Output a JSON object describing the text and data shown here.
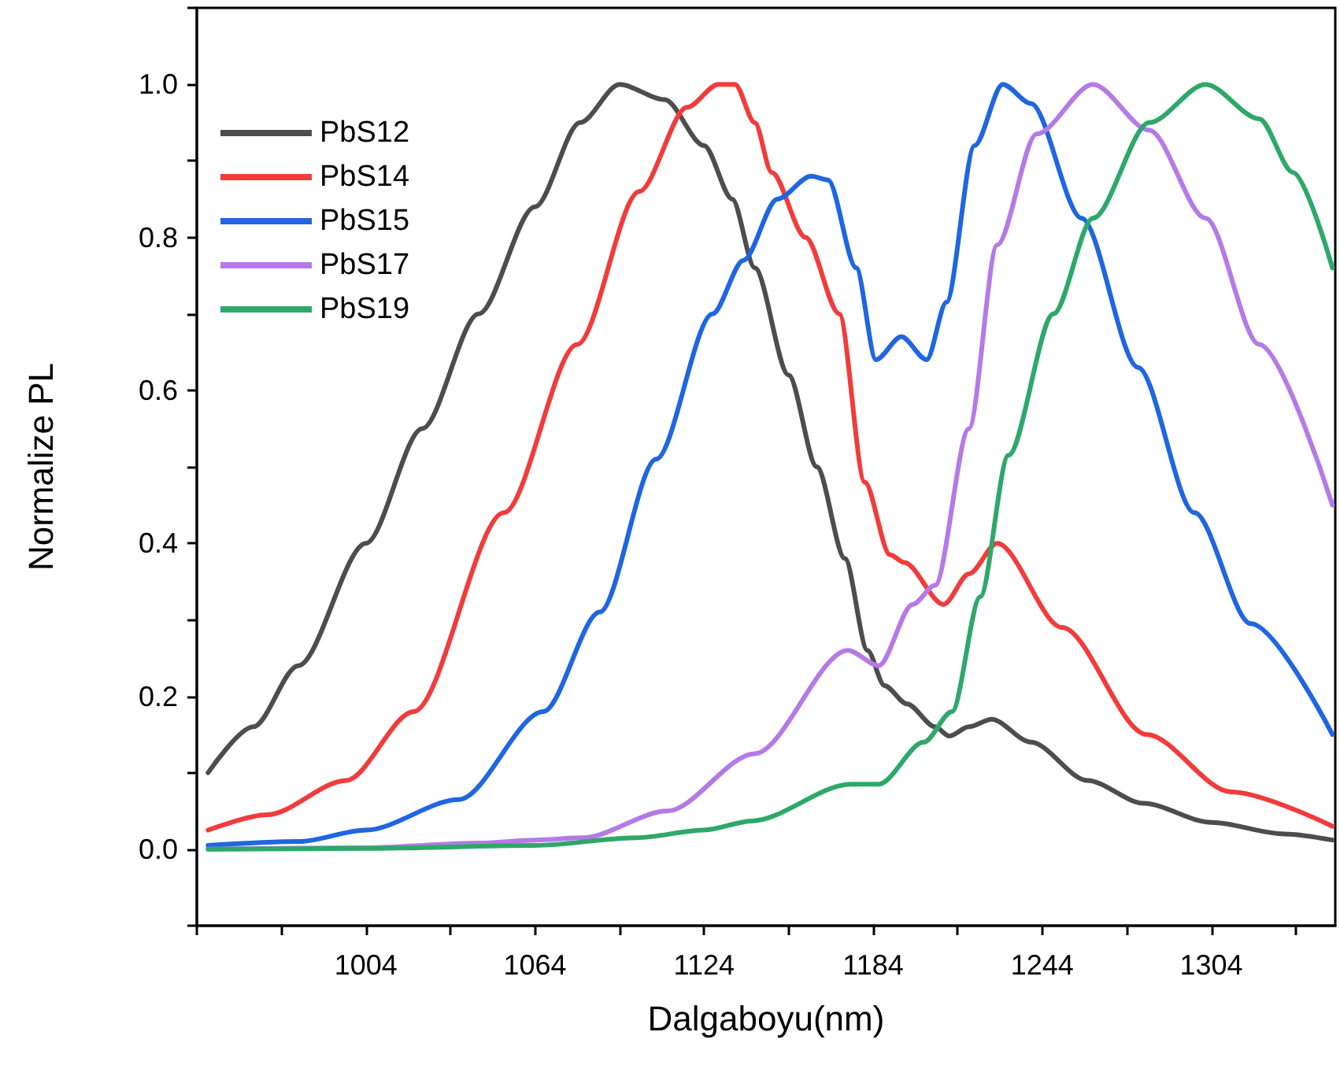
{
  "chart_data": {
    "type": "line",
    "xlabel": "Dalgaboyu(nm)",
    "ylabel": "Normalize PL",
    "xlim": [
      944,
      1348
    ],
    "ylim": [
      -0.1,
      1.1
    ],
    "xticks": [
      {
        "value": 944,
        "label": null
      },
      {
        "value": 974,
        "label": null
      },
      1004,
      {
        "value": 1034,
        "label": null
      },
      1064,
      {
        "value": 1094,
        "label": null
      },
      1124,
      {
        "value": 1154,
        "label": null
      },
      1184,
      {
        "value": 1214,
        "label": null
      },
      1244,
      {
        "value": 1274,
        "label": null
      },
      1304,
      {
        "value": 1334,
        "label": null
      }
    ],
    "yticks": [
      {
        "value": -0.1,
        "label": null
      },
      {
        "value": 0,
        "label": "0.0"
      },
      {
        "value": 0.1,
        "label": null
      },
      {
        "value": 0.2,
        "label": "0.2"
      },
      {
        "value": 0.3,
        "label": null
      },
      {
        "value": 0.4,
        "label": "0.4"
      },
      {
        "value": 0.5,
        "label": null
      },
      {
        "value": 0.6,
        "label": "0.6"
      },
      {
        "value": 0.7,
        "label": null
      },
      {
        "value": 0.8,
        "label": "0.8"
      },
      {
        "value": 0.9,
        "label": null
      },
      {
        "value": 1.0,
        "label": "1.0"
      },
      {
        "value": 1.1,
        "label": null
      }
    ],
    "grid": false,
    "legend": "top left",
    "marker": "none",
    "line_style": "solid",
    "series": [
      {
        "name": "PbS12",
        "color": "#4d4d4d",
        "x": [
          948,
          964,
          980,
          1004,
          1024,
          1044,
          1064,
          1080,
          1094,
          1110,
          1124,
          1134,
          1142,
          1154,
          1164,
          1174,
          1182,
          1188,
          1196,
          1206,
          1211,
          1218,
          1226,
          1240,
          1260,
          1280,
          1304,
          1330,
          1347
        ],
        "values": [
          0.1,
          0.16,
          0.24,
          0.4,
          0.55,
          0.7,
          0.84,
          0.95,
          1.0,
          0.98,
          0.92,
          0.85,
          0.76,
          0.62,
          0.5,
          0.38,
          0.26,
          0.214,
          0.19,
          0.16,
          0.148,
          0.16,
          0.17,
          0.14,
          0.09,
          0.06,
          0.035,
          0.02,
          0.012
        ]
      },
      {
        "name": "PbS14",
        "color": "#f03c3c",
        "x": [
          948,
          969,
          997,
          1021,
          1053,
          1079,
          1101,
          1118,
          1129,
          1135,
          1142,
          1148,
          1160,
          1172,
          1181,
          1190,
          1195,
          1209,
          1218,
          1228,
          1251,
          1281,
          1311,
          1347
        ],
        "values": [
          0.025,
          0.045,
          0.09,
          0.18,
          0.44,
          0.66,
          0.86,
          0.97,
          1.0,
          1.0,
          0.95,
          0.885,
          0.8,
          0.7,
          0.48,
          0.385,
          0.375,
          0.32,
          0.36,
          0.4,
          0.29,
          0.15,
          0.075,
          0.03
        ]
      },
      {
        "name": "PbS15",
        "color": "#1f66e0",
        "x": [
          948,
          980,
          1004,
          1037,
          1067,
          1087,
          1107,
          1127,
          1138,
          1150,
          1162,
          1168,
          1178,
          1185,
          1194,
          1203,
          1210,
          1220,
          1230,
          1240,
          1258,
          1278,
          1298,
          1318,
          1347
        ],
        "values": [
          0.005,
          0.01,
          0.025,
          0.065,
          0.18,
          0.31,
          0.51,
          0.7,
          0.77,
          0.85,
          0.88,
          0.875,
          0.76,
          0.64,
          0.67,
          0.64,
          0.715,
          0.92,
          1.0,
          0.975,
          0.825,
          0.63,
          0.44,
          0.295,
          0.15
        ]
      },
      {
        "name": "PbS17",
        "color": "#b57ae6",
        "x": [
          948,
          1004,
          1044,
          1064,
          1081,
          1111,
          1142,
          1175,
          1186,
          1198,
          1206,
          1218,
          1228,
          1242,
          1262,
          1282,
          1302,
          1321,
          1347
        ],
        "values": [
          0,
          0.002,
          0.008,
          0.012,
          0.015,
          0.05,
          0.125,
          0.26,
          0.24,
          0.32,
          0.345,
          0.55,
          0.79,
          0.935,
          1.0,
          0.94,
          0.825,
          0.66,
          0.45
        ]
      },
      {
        "name": "PbS19",
        "color": "#2ea86a",
        "x": [
          948,
          1004,
          1064,
          1100,
          1124,
          1141,
          1176,
          1186,
          1202,
          1212,
          1222,
          1232,
          1248,
          1262,
          1282,
          1302,
          1321,
          1333,
          1347
        ],
        "values": [
          0,
          0.001,
          0.005,
          0.015,
          0.025,
          0.037,
          0.085,
          0.085,
          0.14,
          0.18,
          0.33,
          0.515,
          0.7,
          0.825,
          0.95,
          1.0,
          0.955,
          0.885,
          0.76
        ]
      }
    ]
  }
}
